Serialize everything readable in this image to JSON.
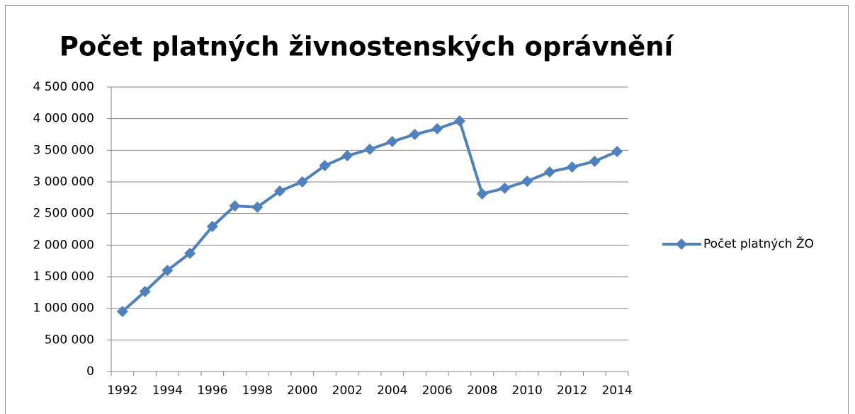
{
  "chart_data": {
    "type": "line",
    "title": "Počet platných živnostenských oprávnění",
    "categories": [
      "1992",
      null,
      "1994",
      null,
      "1996",
      null,
      "1998",
      null,
      "2000",
      null,
      "2002",
      null,
      "2004",
      null,
      "2006",
      null,
      "2008",
      null,
      "2010",
      null,
      "2012",
      null,
      "2014"
    ],
    "series": [
      {
        "name": "Počet platných ŽO",
        "color": "#4f81bd",
        "values": [
          950000,
          1265000,
          1600000,
          1870000,
          2295000,
          2620000,
          2600000,
          2855000,
          3000000,
          3257000,
          3414000,
          3515000,
          3638000,
          3750000,
          3840000,
          3962000,
          2810000,
          2900000,
          3010000,
          3157000,
          3235000,
          3325000,
          3480000
        ]
      }
    ],
    "ylim": [
      0,
      4500000
    ],
    "yticks": [
      0,
      {
        "value": 500000,
        "label": "500 000"
      },
      {
        "value": 1000000,
        "label": "1 000 000"
      },
      {
        "value": 1500000,
        "label": "1 500 000"
      },
      {
        "value": 2000000,
        "label": "2 000 000"
      },
      {
        "value": 2500000,
        "label": "2 500 000"
      },
      {
        "value": 3000000,
        "label": "3 000 000"
      },
      {
        "value": 3500000,
        "label": "3 500 000"
      },
      {
        "value": 4000000,
        "label": "4 000 000"
      },
      {
        "value": 4500000,
        "label": "4 500 000"
      }
    ],
    "grid": true,
    "legend": "right"
  }
}
